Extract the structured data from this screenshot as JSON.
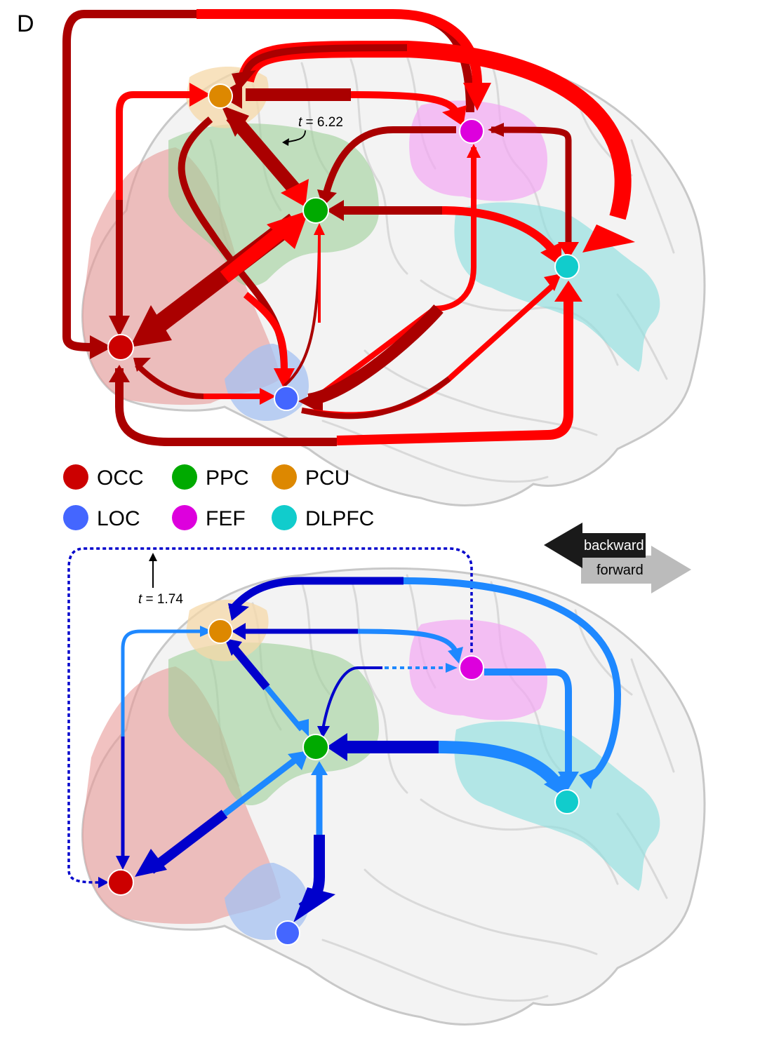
{
  "panel_label": "D",
  "annotations": {
    "top_t": {
      "italic": "t",
      "rest": " = 6.22"
    },
    "bottom_t": {
      "italic": "t",
      "rest": " = 1.74"
    }
  },
  "legend": {
    "regions": [
      {
        "label": "OCC",
        "color": "#cc0000"
      },
      {
        "label": "PPC",
        "color": "#00aa00"
      },
      {
        "label": "PCU",
        "color": "#dd8800"
      },
      {
        "label": "LOC",
        "color": "#4466ff"
      },
      {
        "label": "FEF",
        "color": "#dd00dd"
      },
      {
        "label": "DLPFC",
        "color": "#11cccc"
      }
    ],
    "directions": [
      {
        "label": "backward",
        "color": "#1a1a1a"
      },
      {
        "label": "forward",
        "color": "#bbbbbb"
      }
    ]
  },
  "colors": {
    "excitatory_forward": "#ff0000",
    "excitatory_backward": "#aa0000",
    "inhibitory_forward": "#1e88ff",
    "inhibitory_backward": "#0000cc"
  }
}
